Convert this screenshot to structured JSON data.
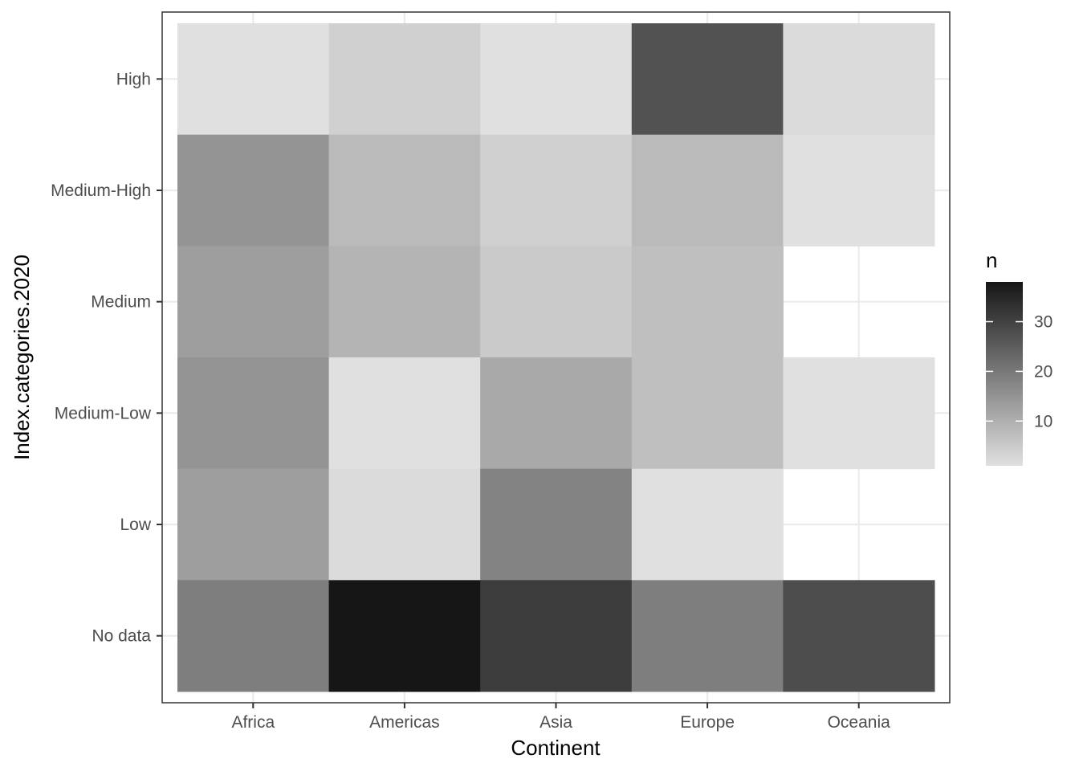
{
  "chart_data": {
    "type": "heatmap",
    "title": "",
    "xlabel": "Continent",
    "ylabel": "Index.categories.2020",
    "x_categories": [
      "Africa",
      "Americas",
      "Asia",
      "Europe",
      "Oceania"
    ],
    "y_categories": [
      "No data",
      "Low",
      "Medium-Low",
      "Medium",
      "Medium-High",
      "High"
    ],
    "cells": [
      {
        "x": "Africa",
        "y": "High",
        "n": 1
      },
      {
        "x": "Americas",
        "y": "High",
        "n": 4
      },
      {
        "x": "Asia",
        "y": "High",
        "n": 1
      },
      {
        "x": "Europe",
        "y": "High",
        "n": 27
      },
      {
        "x": "Oceania",
        "y": "High",
        "n": 2
      },
      {
        "x": "Africa",
        "y": "Medium-High",
        "n": 15
      },
      {
        "x": "Americas",
        "y": "Medium-High",
        "n": 8
      },
      {
        "x": "Asia",
        "y": "Medium-High",
        "n": 4
      },
      {
        "x": "Europe",
        "y": "Medium-High",
        "n": 8
      },
      {
        "x": "Oceania",
        "y": "Medium-High",
        "n": 1
      },
      {
        "x": "Africa",
        "y": "Medium",
        "n": 13
      },
      {
        "x": "Americas",
        "y": "Medium",
        "n": 9
      },
      {
        "x": "Asia",
        "y": "Medium",
        "n": 5
      },
      {
        "x": "Europe",
        "y": "Medium",
        "n": 7
      },
      {
        "x": "Africa",
        "y": "Medium-Low",
        "n": 15
      },
      {
        "x": "Americas",
        "y": "Medium-Low",
        "n": 1
      },
      {
        "x": "Asia",
        "y": "Medium-Low",
        "n": 11
      },
      {
        "x": "Europe",
        "y": "Medium-Low",
        "n": 7
      },
      {
        "x": "Oceania",
        "y": "Medium-Low",
        "n": 1
      },
      {
        "x": "Africa",
        "y": "Low",
        "n": 13
      },
      {
        "x": "Americas",
        "y": "Low",
        "n": 2
      },
      {
        "x": "Asia",
        "y": "Low",
        "n": 18
      },
      {
        "x": "Europe",
        "y": "Low",
        "n": 1
      },
      {
        "x": "Africa",
        "y": "No data",
        "n": 19
      },
      {
        "x": "Americas",
        "y": "No data",
        "n": 38
      },
      {
        "x": "Asia",
        "y": "No data",
        "n": 31
      },
      {
        "x": "Europe",
        "y": "No data",
        "n": 19
      },
      {
        "x": "Oceania",
        "y": "No data",
        "n": 28
      }
    ],
    "color_scale": {
      "name": "n",
      "low_value": 1,
      "high_value": 38,
      "low_color": "#e0e0e0",
      "high_color": "#161616",
      "breaks": [
        10,
        20,
        30
      ]
    },
    "legend_position": "right",
    "grid": true
  }
}
